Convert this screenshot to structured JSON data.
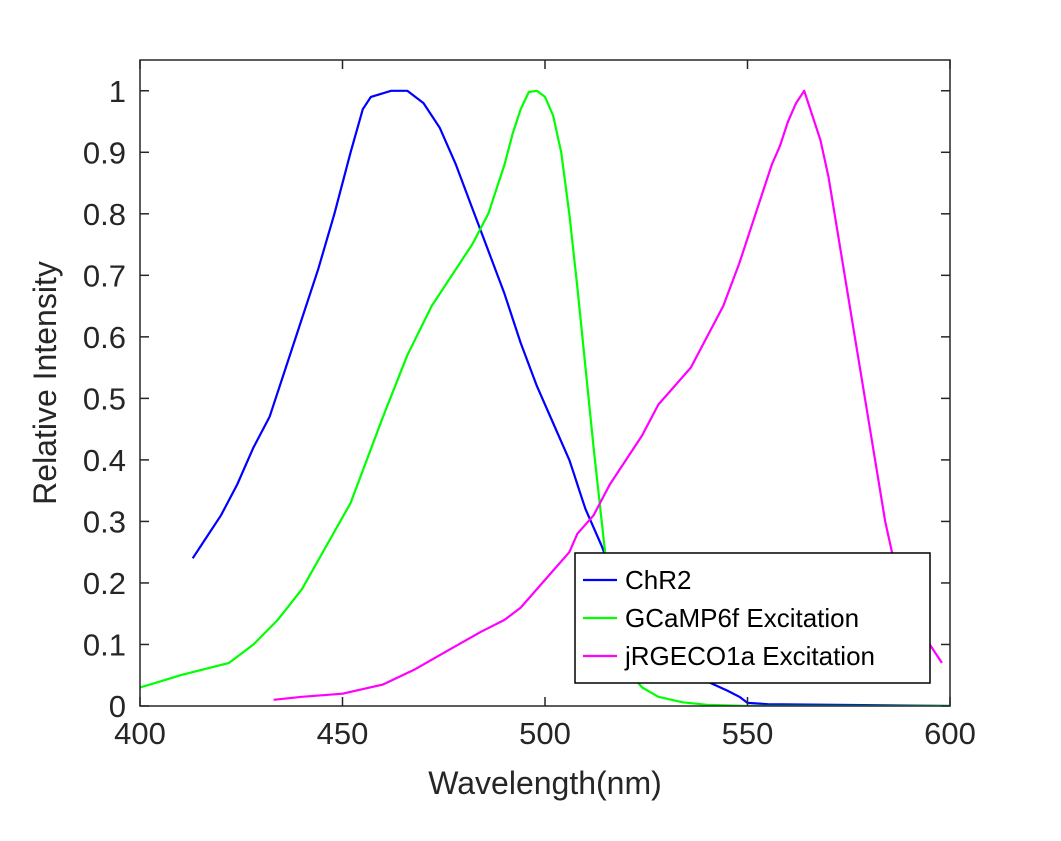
{
  "chart_data": {
    "type": "line",
    "title": "",
    "xlabel": "Wavelength(nm)",
    "ylabel": "Relative Intensity",
    "xlim": [
      400,
      600
    ],
    "ylim": [
      0,
      1.05
    ],
    "xticks": [
      400,
      450,
      500,
      550,
      600
    ],
    "xtick_labels": [
      "400",
      "450",
      "500",
      "550",
      "600"
    ],
    "yticks": [
      0,
      0.1,
      0.2,
      0.3,
      0.4,
      0.5,
      0.6,
      0.7,
      0.8,
      0.9,
      1
    ],
    "ytick_labels": [
      "0",
      "0.1",
      "0.2",
      "0.3",
      "0.4",
      "0.5",
      "0.6",
      "0.7",
      "0.8",
      "0.9",
      "1"
    ],
    "grid": false,
    "box": true,
    "legend_position": "bottom-right",
    "series": [
      {
        "name": "ChR2",
        "color": "#0000ff",
        "points": [
          [
            413,
            0.24
          ],
          [
            416,
            0.27
          ],
          [
            420,
            0.31
          ],
          [
            424,
            0.36
          ],
          [
            428,
            0.42
          ],
          [
            432,
            0.47
          ],
          [
            436,
            0.55
          ],
          [
            440,
            0.63
          ],
          [
            444,
            0.71
          ],
          [
            448,
            0.8
          ],
          [
            452,
            0.9
          ],
          [
            455,
            0.97
          ],
          [
            457,
            0.99
          ],
          [
            462,
            1.0
          ],
          [
            466,
            1.0
          ],
          [
            470,
            0.98
          ],
          [
            474,
            0.94
          ],
          [
            478,
            0.88
          ],
          [
            482,
            0.81
          ],
          [
            486,
            0.74
          ],
          [
            490,
            0.67
          ],
          [
            494,
            0.59
          ],
          [
            498,
            0.52
          ],
          [
            502,
            0.46
          ],
          [
            506,
            0.4
          ],
          [
            507,
            0.38
          ],
          [
            508,
            0.36
          ],
          [
            508.5,
            0.35
          ],
          [
            510,
            0.32
          ],
          [
            514,
            0.26
          ],
          [
            518,
            0.19
          ],
          [
            522,
            0.14
          ],
          [
            526,
            0.1
          ],
          [
            530,
            0.07
          ],
          [
            535,
            0.05
          ],
          [
            540,
            0.04
          ],
          [
            545,
            0.025
          ],
          [
            548,
            0.015
          ],
          [
            550,
            0.005
          ],
          [
            555,
            0.003
          ],
          [
            600,
            0.0
          ]
        ]
      },
      {
        "name": "GCaMP6f Excitation",
        "color": "#00ff00",
        "points": [
          [
            400,
            0.03
          ],
          [
            405,
            0.04
          ],
          [
            410,
            0.05
          ],
          [
            416,
            0.06
          ],
          [
            422,
            0.07
          ],
          [
            428,
            0.1
          ],
          [
            434,
            0.14
          ],
          [
            440,
            0.19
          ],
          [
            446,
            0.26
          ],
          [
            452,
            0.33
          ],
          [
            456,
            0.4
          ],
          [
            460,
            0.47
          ],
          [
            466,
            0.57
          ],
          [
            472,
            0.65
          ],
          [
            478,
            0.71
          ],
          [
            482,
            0.75
          ],
          [
            486,
            0.8
          ],
          [
            488,
            0.84
          ],
          [
            490,
            0.88
          ],
          [
            492,
            0.93
          ],
          [
            494,
            0.97
          ],
          [
            496,
            0.998
          ],
          [
            498,
            1.0
          ],
          [
            500,
            0.99
          ],
          [
            502,
            0.96
          ],
          [
            504,
            0.9
          ],
          [
            506,
            0.8
          ],
          [
            508,
            0.68
          ],
          [
            510,
            0.55
          ],
          [
            512,
            0.42
          ],
          [
            514,
            0.3
          ],
          [
            516,
            0.18
          ],
          [
            518,
            0.1
          ],
          [
            520,
            0.06
          ],
          [
            524,
            0.03
          ],
          [
            528,
            0.015
          ],
          [
            534,
            0.006
          ],
          [
            540,
            0.002
          ],
          [
            550,
            0.0
          ],
          [
            600,
            0.0
          ]
        ]
      },
      {
        "name": "jRGECO1a Excitation",
        "color": "#ff00ff",
        "points": [
          [
            433,
            0.01
          ],
          [
            440,
            0.015
          ],
          [
            450,
            0.02
          ],
          [
            460,
            0.035
          ],
          [
            468,
            0.06
          ],
          [
            476,
            0.09
          ],
          [
            484,
            0.12
          ],
          [
            490,
            0.14
          ],
          [
            494,
            0.16
          ],
          [
            498,
            0.19
          ],
          [
            502,
            0.22
          ],
          [
            506,
            0.25
          ],
          [
            508,
            0.28
          ],
          [
            512,
            0.31
          ],
          [
            516,
            0.36
          ],
          [
            520,
            0.4
          ],
          [
            524,
            0.44
          ],
          [
            528,
            0.49
          ],
          [
            532,
            0.52
          ],
          [
            536,
            0.55
          ],
          [
            540,
            0.6
          ],
          [
            544,
            0.65
          ],
          [
            548,
            0.72
          ],
          [
            552,
            0.8
          ],
          [
            556,
            0.88
          ],
          [
            558,
            0.91
          ],
          [
            560,
            0.95
          ],
          [
            562,
            0.98
          ],
          [
            564,
            1.0
          ],
          [
            566,
            0.96
          ],
          [
            568,
            0.92
          ],
          [
            570,
            0.86
          ],
          [
            572,
            0.78
          ],
          [
            574,
            0.7
          ],
          [
            576,
            0.62
          ],
          [
            578,
            0.54
          ],
          [
            580,
            0.46
          ],
          [
            582,
            0.38
          ],
          [
            584,
            0.3
          ],
          [
            586,
            0.24
          ],
          [
            588,
            0.2
          ],
          [
            590,
            0.16
          ],
          [
            593,
            0.12
          ],
          [
            596,
            0.09
          ],
          [
            598,
            0.07
          ]
        ]
      }
    ]
  }
}
